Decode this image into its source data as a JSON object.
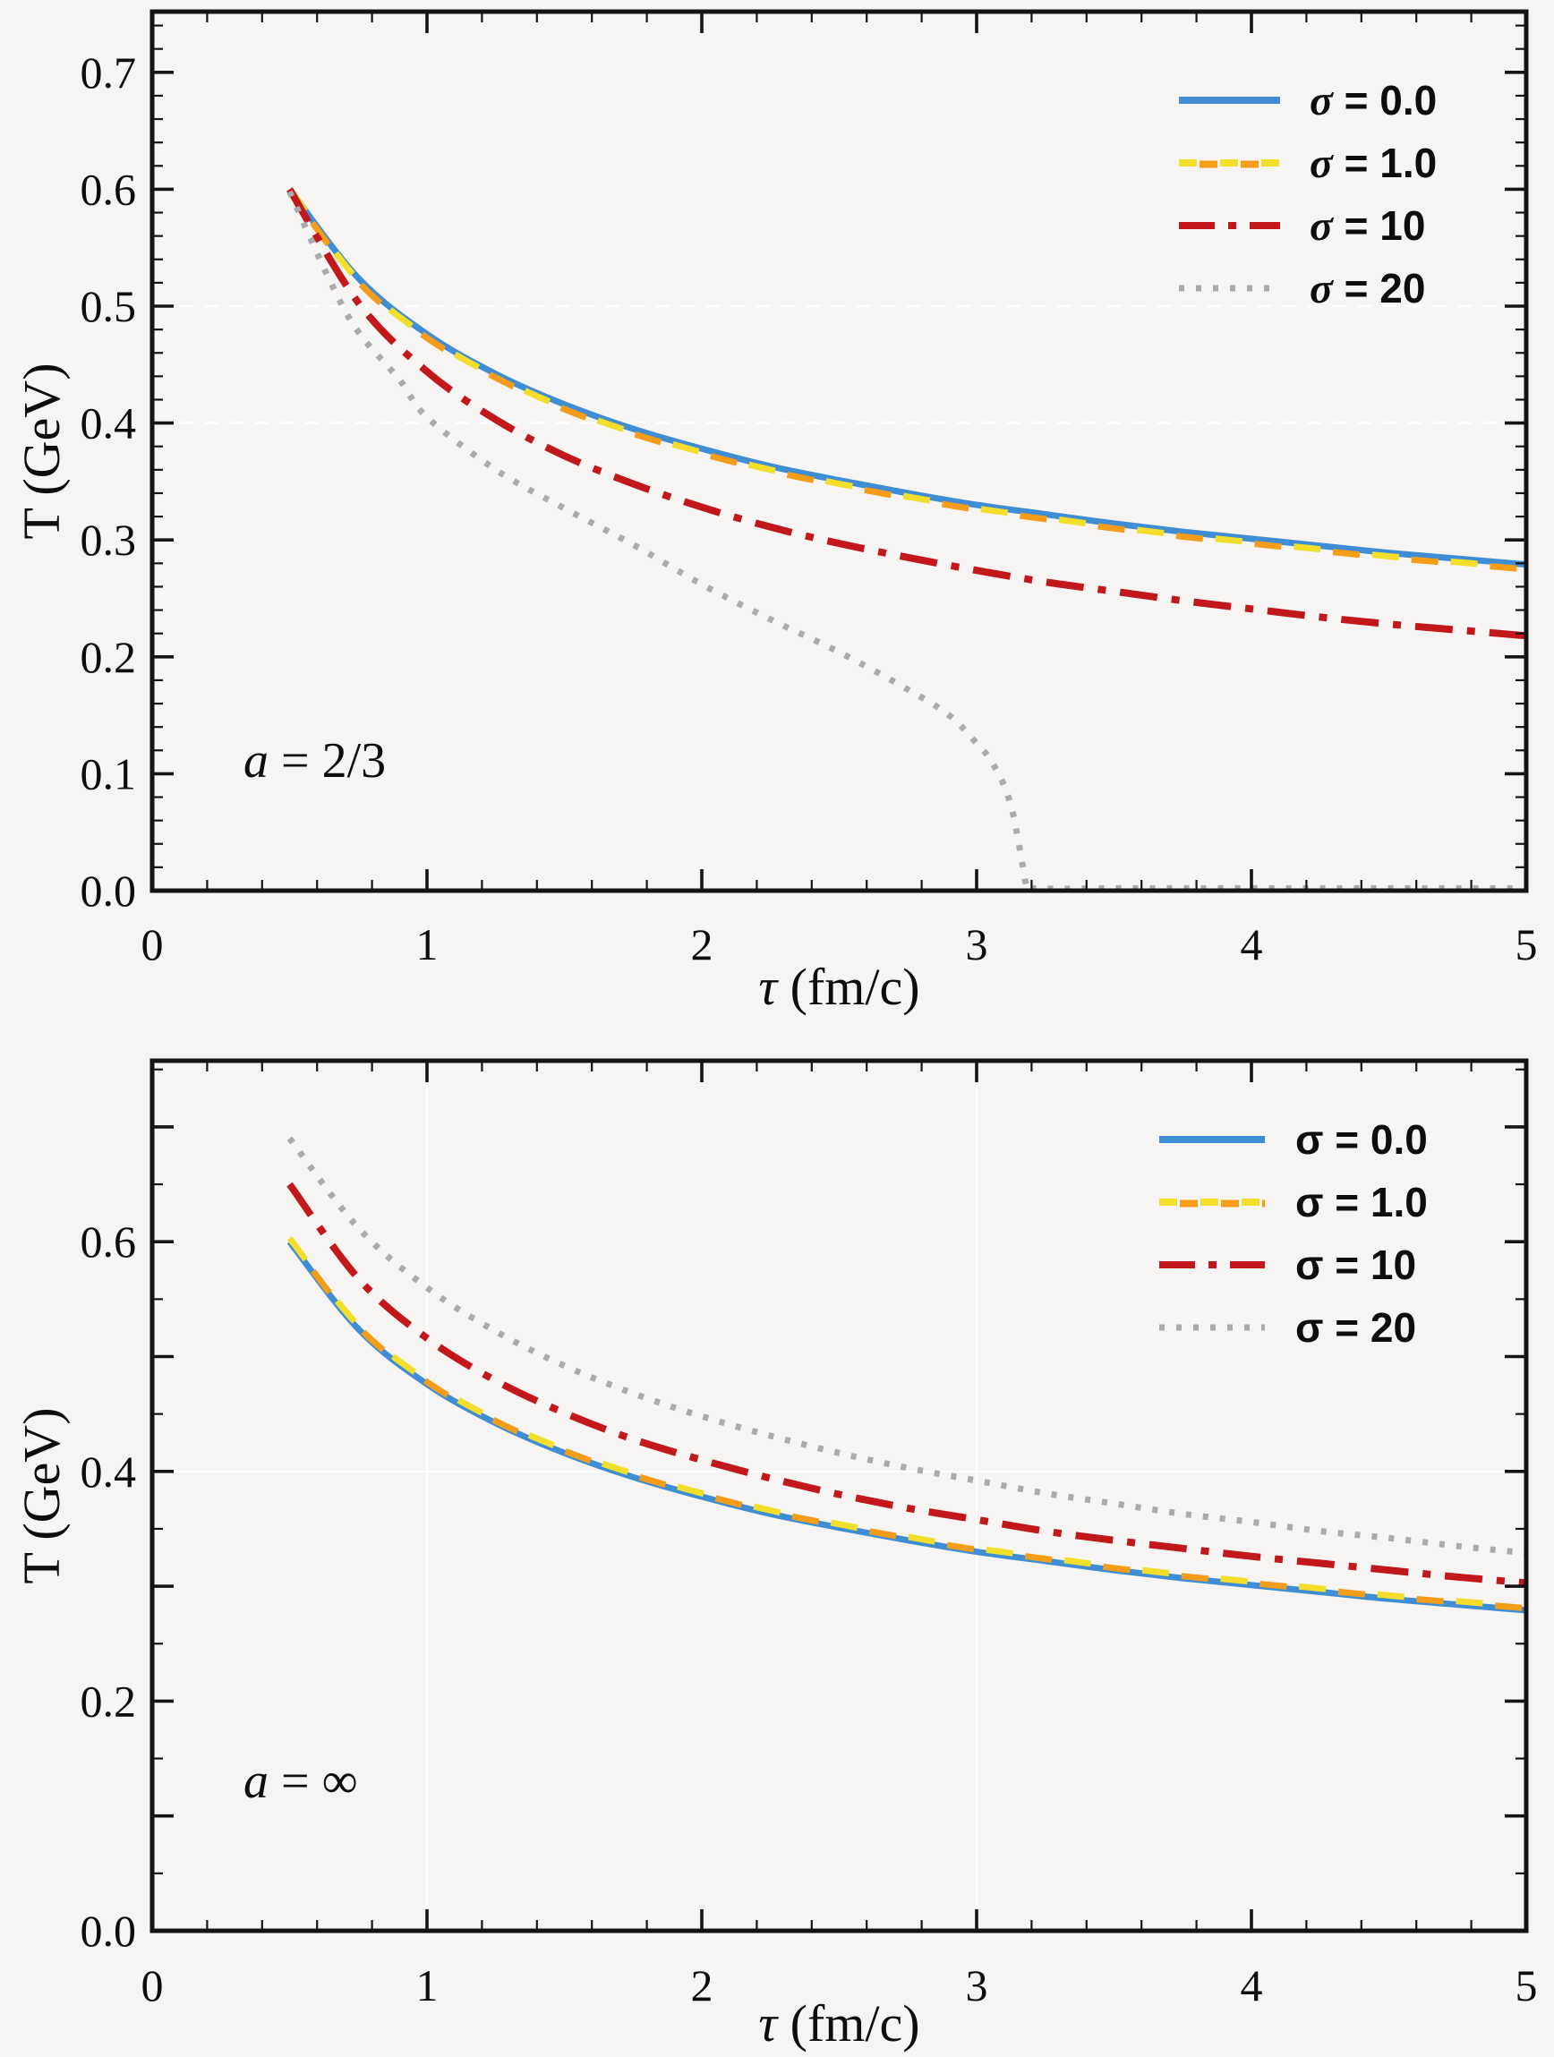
{
  "figure": {
    "background": "#f6f5f3",
    "frame_color": "#141414",
    "text_color": "#0d0d0d",
    "grid_color": "#ffffff"
  },
  "chart_data": [
    {
      "type": "line",
      "panel": "top",
      "annotation": "a = 2/3",
      "xlabel": "τ (fm/c)",
      "ylabel": "T (GeV)",
      "xlim": [
        0,
        5
      ],
      "ylim": [
        0,
        0.752
      ],
      "grid": {
        "h": [
          0.4,
          0.5
        ],
        "v": [],
        "dashed": true
      },
      "xticks": {
        "major": [
          0,
          1,
          2,
          3,
          4,
          5
        ],
        "labels": [
          "0",
          "1",
          "2",
          "3",
          "4",
          "5"
        ],
        "minor_step": 0.2
      },
      "yticks": {
        "major": [
          0,
          0.1,
          0.2,
          0.3,
          0.4,
          0.5,
          0.6,
          0.7
        ],
        "labels": [
          "0.0",
          "0.1",
          "0.2",
          "0.3",
          "0.4",
          "0.5",
          "0.6",
          "0.7"
        ],
        "label_every": 1,
        "minor_step": 0.02
      },
      "legend": [
        {
          "label": "σ = 0.0",
          "style": "solid",
          "colors": [
            "#3f8ed5"
          ]
        },
        {
          "label": "σ = 1.0",
          "style": "dashed",
          "colors": [
            "#f3df2b",
            "#f59c18"
          ]
        },
        {
          "label": "σ = 10",
          "style": "dashdot",
          "colors": [
            "#c2181c"
          ]
        },
        {
          "label": "σ = 20",
          "style": "dotted",
          "colors": [
            "#ababab"
          ]
        }
      ],
      "series": [
        {
          "name": "sigma-0.0",
          "style": "solid",
          "colors": [
            "#3f8ed5"
          ],
          "points": [
            [
              0.5,
              0.6
            ],
            [
              0.75,
              0.524
            ],
            [
              1.0,
              0.476
            ],
            [
              1.25,
              0.442
            ],
            [
              1.5,
              0.416
            ],
            [
              1.75,
              0.395
            ],
            [
              2.0,
              0.378
            ],
            [
              2.25,
              0.363
            ],
            [
              2.5,
              0.351
            ],
            [
              2.75,
              0.34
            ],
            [
              3.0,
              0.33
            ],
            [
              3.25,
              0.322
            ],
            [
              3.5,
              0.314
            ],
            [
              3.75,
              0.307
            ],
            [
              4.0,
              0.301
            ],
            [
              4.25,
              0.295
            ],
            [
              4.5,
              0.289
            ],
            [
              4.75,
              0.284
            ],
            [
              5.0,
              0.279
            ]
          ]
        },
        {
          "name": "sigma-1.0",
          "style": "dashed",
          "colors": [
            "#f3df2b",
            "#f59c18"
          ],
          "points": [
            [
              0.5,
              0.6
            ],
            [
              0.75,
              0.522
            ],
            [
              1.0,
              0.474
            ],
            [
              1.25,
              0.44
            ],
            [
              1.5,
              0.413
            ],
            [
              1.75,
              0.392
            ],
            [
              2.0,
              0.375
            ],
            [
              2.25,
              0.36
            ],
            [
              2.5,
              0.348
            ],
            [
              2.75,
              0.337
            ],
            [
              3.0,
              0.327
            ],
            [
              3.25,
              0.319
            ],
            [
              3.5,
              0.311
            ],
            [
              3.75,
              0.304
            ],
            [
              4.0,
              0.298
            ],
            [
              4.25,
              0.292
            ],
            [
              4.5,
              0.286
            ],
            [
              4.75,
              0.281
            ],
            [
              5.0,
              0.276
            ]
          ]
        },
        {
          "name": "sigma-10",
          "style": "dashdot",
          "colors": [
            "#c2181c"
          ],
          "points": [
            [
              0.5,
              0.6
            ],
            [
              0.75,
              0.503
            ],
            [
              1.0,
              0.444
            ],
            [
              1.25,
              0.403
            ],
            [
              1.5,
              0.372
            ],
            [
              1.75,
              0.348
            ],
            [
              2.0,
              0.328
            ],
            [
              2.25,
              0.311
            ],
            [
              2.5,
              0.297
            ],
            [
              2.75,
              0.285
            ],
            [
              3.0,
              0.274
            ],
            [
              3.25,
              0.264
            ],
            [
              3.5,
              0.256
            ],
            [
              3.75,
              0.248
            ],
            [
              4.0,
              0.241
            ],
            [
              4.25,
              0.234
            ],
            [
              4.5,
              0.228
            ],
            [
              4.75,
              0.223
            ],
            [
              5.0,
              0.218
            ]
          ]
        },
        {
          "name": "sigma-20",
          "style": "dotted",
          "colors": [
            "#ababab"
          ],
          "points": [
            [
              0.5,
              0.598
            ],
            [
              0.65,
              0.52
            ],
            [
              0.75,
              0.478
            ],
            [
              0.9,
              0.437
            ],
            [
              1.0,
              0.405
            ],
            [
              1.25,
              0.36
            ],
            [
              1.5,
              0.327
            ],
            [
              1.75,
              0.296
            ],
            [
              2.0,
              0.262
            ],
            [
              2.25,
              0.232
            ],
            [
              2.5,
              0.204
            ],
            [
              2.75,
              0.172
            ],
            [
              2.9,
              0.15
            ],
            [
              3.0,
              0.126
            ],
            [
              3.05,
              0.112
            ],
            [
              3.1,
              0.09
            ],
            [
              3.13,
              0.068
            ],
            [
              3.15,
              0.045
            ],
            [
              3.17,
              0.018
            ],
            [
              3.18,
              0.006
            ],
            [
              3.2,
              0.002
            ],
            [
              3.5,
              0.002
            ],
            [
              4.0,
              0.002
            ],
            [
              4.5,
              0.002
            ],
            [
              5.0,
              0.002
            ]
          ]
        }
      ]
    },
    {
      "type": "line",
      "panel": "bottom",
      "annotation": "a = ∞",
      "xlabel": "τ (fm/c)",
      "ylabel": "T (GeV)",
      "xlim": [
        0,
        5
      ],
      "ylim": [
        0,
        0.758
      ],
      "grid": {
        "h": [
          0.4
        ],
        "v": [
          1,
          3
        ],
        "dashed": false
      },
      "xticks": {
        "major": [
          0,
          1,
          2,
          3,
          4,
          5
        ],
        "labels": [
          "0",
          "1",
          "2",
          "3",
          "4",
          "5"
        ],
        "minor_step": 0.2
      },
      "yticks": {
        "major": [
          0,
          0.1,
          0.2,
          0.3,
          0.4,
          0.5,
          0.6,
          0.7
        ],
        "labels": [
          "0.0",
          "0.2",
          "0.4",
          "0.6"
        ],
        "label_every": 2,
        "minor_step": 0.05
      },
      "legend": [
        {
          "label": "σ = 0.0",
          "style": "solid",
          "colors": [
            "#3f8ed5"
          ]
        },
        {
          "label": "σ = 1.0",
          "style": "dashed",
          "colors": [
            "#f3df2b",
            "#f59c18"
          ]
        },
        {
          "label": "σ = 10",
          "style": "dashdot",
          "colors": [
            "#c2181c"
          ]
        },
        {
          "label": "σ = 20",
          "style": "dotted",
          "colors": [
            "#ababab"
          ]
        }
      ],
      "series": [
        {
          "name": "sigma-0.0",
          "style": "solid",
          "colors": [
            "#3f8ed5"
          ],
          "points": [
            [
              0.5,
              0.6
            ],
            [
              0.75,
              0.524
            ],
            [
              1.0,
              0.476
            ],
            [
              1.25,
              0.442
            ],
            [
              1.5,
              0.416
            ],
            [
              1.75,
              0.395
            ],
            [
              2.0,
              0.378
            ],
            [
              2.25,
              0.363
            ],
            [
              2.5,
              0.351
            ],
            [
              2.75,
              0.34
            ],
            [
              3.0,
              0.33
            ],
            [
              3.25,
              0.322
            ],
            [
              3.5,
              0.314
            ],
            [
              3.75,
              0.307
            ],
            [
              4.0,
              0.301
            ],
            [
              4.25,
              0.295
            ],
            [
              4.5,
              0.289
            ],
            [
              4.75,
              0.284
            ],
            [
              5.0,
              0.279
            ]
          ]
        },
        {
          "name": "sigma-1.0",
          "style": "dashed",
          "colors": [
            "#f3df2b",
            "#f59c18"
          ],
          "points": [
            [
              0.5,
              0.603
            ],
            [
              0.75,
              0.527
            ],
            [
              1.0,
              0.479
            ],
            [
              1.25,
              0.445
            ],
            [
              1.5,
              0.419
            ],
            [
              1.75,
              0.398
            ],
            [
              2.0,
              0.381
            ],
            [
              2.25,
              0.366
            ],
            [
              2.5,
              0.354
            ],
            [
              2.75,
              0.343
            ],
            [
              3.0,
              0.333
            ],
            [
              3.25,
              0.325
            ],
            [
              3.5,
              0.317
            ],
            [
              3.75,
              0.31
            ],
            [
              4.0,
              0.304
            ],
            [
              4.25,
              0.298
            ],
            [
              4.5,
              0.292
            ],
            [
              4.75,
              0.287
            ],
            [
              5.0,
              0.282
            ]
          ]
        },
        {
          "name": "sigma-10",
          "style": "dashdot",
          "colors": [
            "#c2181c"
          ],
          "points": [
            [
              0.5,
              0.65
            ],
            [
              0.75,
              0.568
            ],
            [
              1.0,
              0.516
            ],
            [
              1.25,
              0.479
            ],
            [
              1.5,
              0.451
            ],
            [
              1.75,
              0.428
            ],
            [
              2.0,
              0.41
            ],
            [
              2.25,
              0.394
            ],
            [
              2.5,
              0.38
            ],
            [
              2.75,
              0.368
            ],
            [
              3.0,
              0.358
            ],
            [
              3.25,
              0.348
            ],
            [
              3.5,
              0.34
            ],
            [
              3.75,
              0.333
            ],
            [
              4.0,
              0.326
            ],
            [
              4.25,
              0.32
            ],
            [
              4.5,
              0.314
            ],
            [
              4.75,
              0.308
            ],
            [
              5.0,
              0.303
            ]
          ]
        },
        {
          "name": "sigma-20",
          "style": "dotted",
          "colors": [
            "#ababab"
          ],
          "points": [
            [
              0.5,
              0.69
            ],
            [
              0.75,
              0.612
            ],
            [
              1.0,
              0.56
            ],
            [
              1.25,
              0.522
            ],
            [
              1.5,
              0.492
            ],
            [
              1.75,
              0.468
            ],
            [
              2.0,
              0.448
            ],
            [
              2.25,
              0.431
            ],
            [
              2.5,
              0.416
            ],
            [
              2.75,
              0.403
            ],
            [
              3.0,
              0.392
            ],
            [
              3.25,
              0.381
            ],
            [
              3.5,
              0.372
            ],
            [
              3.75,
              0.363
            ],
            [
              4.0,
              0.356
            ],
            [
              4.25,
              0.348
            ],
            [
              4.5,
              0.342
            ],
            [
              4.75,
              0.335
            ],
            [
              5.0,
              0.329
            ]
          ]
        }
      ]
    }
  ]
}
